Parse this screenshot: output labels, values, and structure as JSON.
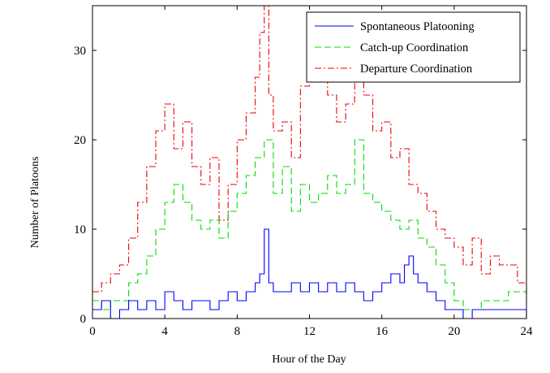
{
  "chart_data": {
    "type": "line",
    "title": "",
    "xlabel": "Hour of the Day",
    "ylabel": "Number of Platoons",
    "xlim": [
      0,
      24
    ],
    "ylim": [
      0,
      35
    ],
    "xticks": [
      0,
      4,
      8,
      12,
      16,
      20,
      24
    ],
    "yticks": [
      0,
      10,
      20,
      30
    ],
    "grid": false,
    "legend_position": "top-right",
    "series": [
      {
        "name": "Spontaneous Platooning",
        "color": "#0000ff",
        "style": "solid",
        "x": [
          0,
          0.5,
          1,
          1.5,
          2,
          2.5,
          3,
          3.5,
          4,
          4.5,
          5,
          5.5,
          6,
          6.5,
          7,
          7.5,
          8,
          8.5,
          9,
          9.25,
          9.5,
          9.75,
          10,
          10.5,
          11,
          11.5,
          12,
          12.5,
          13,
          13.5,
          14,
          14.5,
          15,
          15.5,
          16,
          16.5,
          17,
          17.25,
          17.5,
          17.75,
          18,
          18.5,
          19,
          19.5,
          20,
          20.5,
          21,
          21.5,
          22,
          22.5,
          23,
          23.5,
          24
        ],
        "y": [
          1,
          2,
          0,
          1,
          2,
          1,
          2,
          1,
          3,
          2,
          1,
          2,
          2,
          1,
          2,
          3,
          2,
          3,
          4,
          5,
          10,
          4,
          3,
          3,
          4,
          3,
          4,
          3,
          4,
          3,
          4,
          3,
          2,
          3,
          4,
          5,
          4,
          6,
          7,
          5,
          4,
          3,
          2,
          1,
          1,
          0,
          1,
          1,
          1,
          1,
          1,
          1,
          0
        ]
      },
      {
        "name": "Catch-up Coordination",
        "color": "#00dd00",
        "style": "dashed",
        "x": [
          0,
          0.5,
          1,
          1.5,
          2,
          2.5,
          3,
          3.5,
          4,
          4.5,
          5,
          5.5,
          6,
          6.5,
          7,
          7.5,
          8,
          8.5,
          9,
          9.5,
          10,
          10.5,
          11,
          11.5,
          12,
          12.5,
          13,
          13.5,
          14,
          14.5,
          15,
          15.5,
          16,
          16.5,
          17,
          17.5,
          18,
          18.5,
          19,
          19.5,
          20,
          20.5,
          21,
          21.5,
          22,
          22.5,
          23,
          23.5,
          24
        ],
        "y": [
          2,
          1,
          2,
          2,
          4,
          5,
          7,
          10,
          13,
          15,
          13,
          11,
          10,
          11,
          9,
          12,
          14,
          16,
          18,
          20,
          14,
          17,
          12,
          15,
          13,
          14,
          16,
          14,
          15,
          20,
          14,
          13,
          12,
          11,
          10,
          11,
          9,
          8,
          6,
          4,
          2,
          1,
          1,
          2,
          2,
          2,
          3,
          3,
          2
        ]
      },
      {
        "name": "Departure Coordination",
        "color": "#ee0000",
        "style": "dashdot",
        "x": [
          0,
          0.5,
          1,
          1.5,
          2,
          2.5,
          3,
          3.5,
          4,
          4.5,
          5,
          5.5,
          6,
          6.5,
          7,
          7.5,
          8,
          8.5,
          9,
          9.25,
          9.5,
          9.75,
          10,
          10.5,
          11,
          11.5,
          12,
          12.5,
          13,
          13.5,
          14,
          14.5,
          15,
          15.5,
          16,
          16.5,
          17,
          17.5,
          18,
          18.5,
          19,
          19.5,
          20,
          20.5,
          21,
          21.5,
          22,
          22.5,
          23,
          23.5,
          24
        ],
        "y": [
          3,
          4,
          5,
          6,
          9,
          13,
          17,
          21,
          24,
          19,
          22,
          17,
          15,
          18,
          11,
          15,
          20,
          23,
          27,
          32,
          35,
          25,
          21,
          22,
          18,
          26,
          31,
          27,
          25,
          22,
          24,
          27,
          25,
          21,
          22,
          18,
          19,
          15,
          14,
          12,
          10,
          9,
          8,
          6,
          9,
          5,
          7,
          6,
          6,
          4,
          2
        ]
      }
    ]
  }
}
